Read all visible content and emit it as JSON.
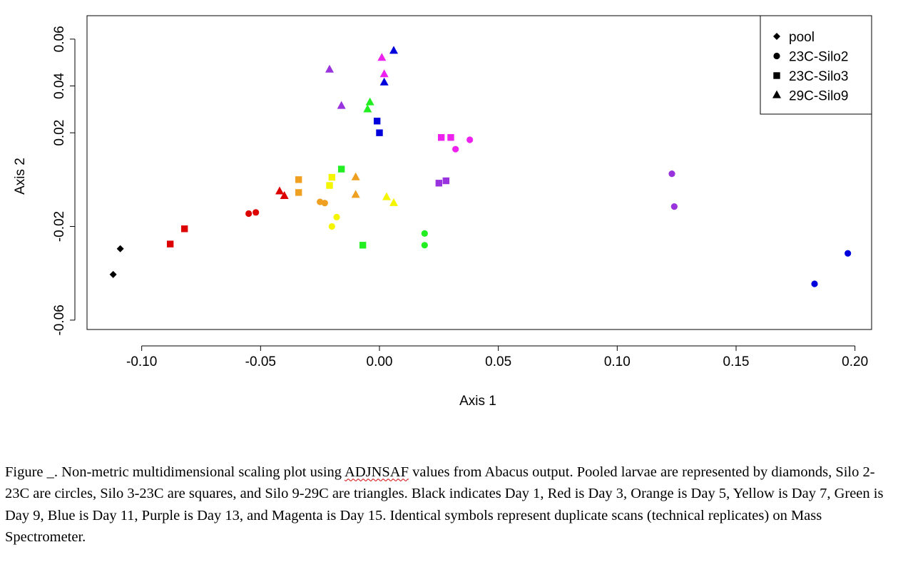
{
  "chart_data": {
    "type": "scatter",
    "xlabel": "Axis 1",
    "ylabel": "Axis 2",
    "xlim": [
      -0.123,
      0.207
    ],
    "ylim": [
      -0.064,
      0.07
    ],
    "xticks": [
      -0.1,
      -0.05,
      0.0,
      0.05,
      0.1,
      0.15,
      0.2
    ],
    "xtick_labels": [
      "-0.10",
      "-0.05",
      "0.00",
      "0.05",
      "0.10",
      "0.15",
      "0.20"
    ],
    "yticks": [
      -0.06,
      -0.02,
      0.02,
      0.04,
      0.06
    ],
    "ytick_labels": [
      "-0.06",
      "-0.02",
      "0.02",
      "0.04",
      "0.06"
    ],
    "grid": false,
    "legend": {
      "placement": "top-right",
      "entries": [
        {
          "label": "pool",
          "shape": "diamond"
        },
        {
          "label": "23C-Silo2",
          "shape": "circle"
        },
        {
          "label": "23C-Silo3",
          "shape": "square"
        },
        {
          "label": "29C-Silo9",
          "shape": "triangle"
        }
      ]
    },
    "colors": {
      "black": "#000000",
      "red": "#dd0000",
      "orange": "#f0a020",
      "yellow": "#f5f500",
      "green": "#22ee22",
      "blue": "#0000dd",
      "purple": "#9933dd",
      "magenta": "#ee22ee"
    },
    "points": [
      {
        "x": -0.109,
        "y": -0.0295,
        "shape": "diamond",
        "color": "black"
      },
      {
        "x": -0.112,
        "y": -0.0405,
        "shape": "diamond",
        "color": "black"
      },
      {
        "x": -0.055,
        "y": -0.0145,
        "shape": "circle",
        "color": "red"
      },
      {
        "x": -0.052,
        "y": -0.014,
        "shape": "circle",
        "color": "red"
      },
      {
        "x": -0.025,
        "y": -0.0095,
        "shape": "circle",
        "color": "orange"
      },
      {
        "x": -0.023,
        "y": -0.01,
        "shape": "circle",
        "color": "orange"
      },
      {
        "x": -0.02,
        "y": -0.02,
        "shape": "circle",
        "color": "yellow"
      },
      {
        "x": -0.018,
        "y": -0.016,
        "shape": "circle",
        "color": "yellow"
      },
      {
        "x": 0.019,
        "y": -0.023,
        "shape": "circle",
        "color": "green"
      },
      {
        "x": 0.019,
        "y": -0.028,
        "shape": "circle",
        "color": "green"
      },
      {
        "x": 0.183,
        "y": -0.0445,
        "shape": "circle",
        "color": "blue"
      },
      {
        "x": 0.197,
        "y": -0.0315,
        "shape": "circle",
        "color": "blue"
      },
      {
        "x": 0.123,
        "y": 0.0025,
        "shape": "circle",
        "color": "purple"
      },
      {
        "x": 0.124,
        "y": -0.0115,
        "shape": "circle",
        "color": "purple"
      },
      {
        "x": 0.032,
        "y": 0.013,
        "shape": "circle",
        "color": "magenta"
      },
      {
        "x": 0.038,
        "y": 0.017,
        "shape": "circle",
        "color": "magenta"
      },
      {
        "x": -0.088,
        "y": -0.0275,
        "shape": "square",
        "color": "red"
      },
      {
        "x": -0.082,
        "y": -0.021,
        "shape": "square",
        "color": "red"
      },
      {
        "x": -0.034,
        "y": 0.0,
        "shape": "square",
        "color": "orange"
      },
      {
        "x": -0.034,
        "y": -0.0055,
        "shape": "square",
        "color": "orange"
      },
      {
        "x": -0.021,
        "y": -0.0025,
        "shape": "square",
        "color": "yellow"
      },
      {
        "x": -0.02,
        "y": 0.001,
        "shape": "square",
        "color": "yellow"
      },
      {
        "x": -0.016,
        "y": 0.0045,
        "shape": "square",
        "color": "green"
      },
      {
        "x": -0.007,
        "y": -0.028,
        "shape": "square",
        "color": "green"
      },
      {
        "x": -0.001,
        "y": 0.025,
        "shape": "square",
        "color": "blue"
      },
      {
        "x": 0.0,
        "y": 0.02,
        "shape": "square",
        "color": "blue"
      },
      {
        "x": 0.025,
        "y": -0.0015,
        "shape": "square",
        "color": "purple"
      },
      {
        "x": 0.028,
        "y": -0.0005,
        "shape": "square",
        "color": "purple"
      },
      {
        "x": 0.026,
        "y": 0.018,
        "shape": "square",
        "color": "magenta"
      },
      {
        "x": 0.03,
        "y": 0.018,
        "shape": "square",
        "color": "magenta"
      },
      {
        "x": -0.042,
        "y": -0.005,
        "shape": "triangle",
        "color": "red"
      },
      {
        "x": -0.04,
        "y": -0.007,
        "shape": "triangle",
        "color": "red"
      },
      {
        "x": -0.01,
        "y": 0.001,
        "shape": "triangle",
        "color": "orange"
      },
      {
        "x": -0.01,
        "y": -0.0065,
        "shape": "triangle",
        "color": "orange"
      },
      {
        "x": 0.003,
        "y": -0.0075,
        "shape": "triangle",
        "color": "yellow"
      },
      {
        "x": 0.006,
        "y": -0.01,
        "shape": "triangle",
        "color": "yellow"
      },
      {
        "x": -0.005,
        "y": 0.03,
        "shape": "triangle",
        "color": "green"
      },
      {
        "x": -0.004,
        "y": 0.033,
        "shape": "triangle",
        "color": "green"
      },
      {
        "x": 0.002,
        "y": 0.0415,
        "shape": "triangle",
        "color": "blue"
      },
      {
        "x": 0.006,
        "y": 0.055,
        "shape": "triangle",
        "color": "blue"
      },
      {
        "x": -0.021,
        "y": 0.047,
        "shape": "triangle",
        "color": "purple"
      },
      {
        "x": -0.016,
        "y": 0.0315,
        "shape": "triangle",
        "color": "purple"
      },
      {
        "x": 0.001,
        "y": 0.052,
        "shape": "triangle",
        "color": "magenta"
      },
      {
        "x": 0.002,
        "y": 0.045,
        "shape": "triangle",
        "color": "magenta"
      }
    ]
  },
  "caption": {
    "part1": "Figure _. Non-metric multidimensional scaling plot using ",
    "flagged_word": "ADJNSAF",
    "part2": " values from Abacus output. Pooled larvae are represented by diamonds, Silo 2-23C are circles, Silo 3-23C are squares, and Silo 9-29C are triangles. Black indicates Day 1, Red is Day 3, Orange is Day 5, Yellow is Day 7, Green is Day 9, Blue is Day 11, Purple is Day 13, and Magenta is Day 15. Identical symbols represent duplicate scans (technical replicates) on Mass Spectrometer."
  }
}
